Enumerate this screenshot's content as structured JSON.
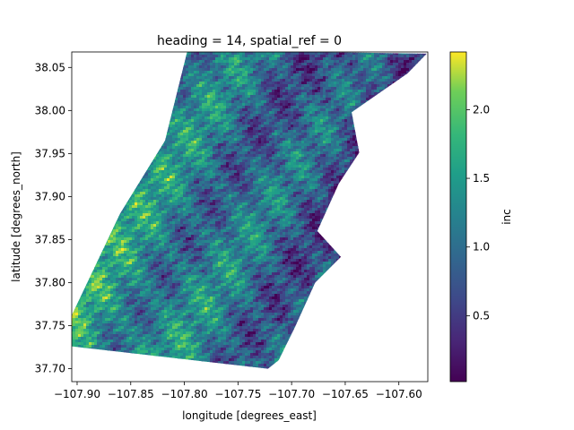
{
  "chart_data": {
    "type": "heatmap",
    "title": "heading = 14, spatial_ref = 0",
    "xlabel": "longitude [degrees_east]",
    "ylabel": "latitude [degrees_north]",
    "colorbar_label": "inc",
    "colormap": "viridis",
    "xlim": [
      -107.905,
      -107.573
    ],
    "ylim": [
      37.685,
      38.068
    ],
    "clim": [
      0.02,
      2.42
    ],
    "xticks": [
      -107.9,
      -107.85,
      -107.8,
      -107.75,
      -107.7,
      -107.65,
      -107.6
    ],
    "xtick_labels": [
      "−107.90",
      "−107.85",
      "−107.80",
      "−107.75",
      "−107.70",
      "−107.65",
      "−107.60"
    ],
    "yticks": [
      37.7,
      37.75,
      37.8,
      37.85,
      37.9,
      37.95,
      38.0,
      38.05
    ],
    "ytick_labels": [
      "37.70",
      "37.75",
      "37.80",
      "37.85",
      "37.90",
      "37.95",
      "38.00",
      "38.05"
    ],
    "colorbar_ticks": [
      0.5,
      1.0,
      1.5,
      2.0
    ],
    "colorbar_tick_labels": [
      "0.5",
      "1.0",
      "1.5",
      "2.0"
    ],
    "footprint_polygon": [
      [
        -107.797,
        38.07
      ],
      [
        -107.574,
        38.066
      ],
      [
        -107.592,
        38.043
      ],
      [
        -107.644,
        37.998
      ],
      [
        -107.637,
        37.951
      ],
      [
        -107.656,
        37.915
      ],
      [
        -107.676,
        37.86
      ],
      [
        -107.654,
        37.83
      ],
      [
        -107.678,
        37.8
      ],
      [
        -107.697,
        37.748
      ],
      [
        -107.712,
        37.71
      ],
      [
        -107.722,
        37.7
      ],
      [
        -107.905,
        37.726
      ],
      [
        -107.905,
        37.762
      ],
      [
        -107.86,
        37.88
      ],
      [
        -107.818,
        37.965
      ]
    ]
  }
}
